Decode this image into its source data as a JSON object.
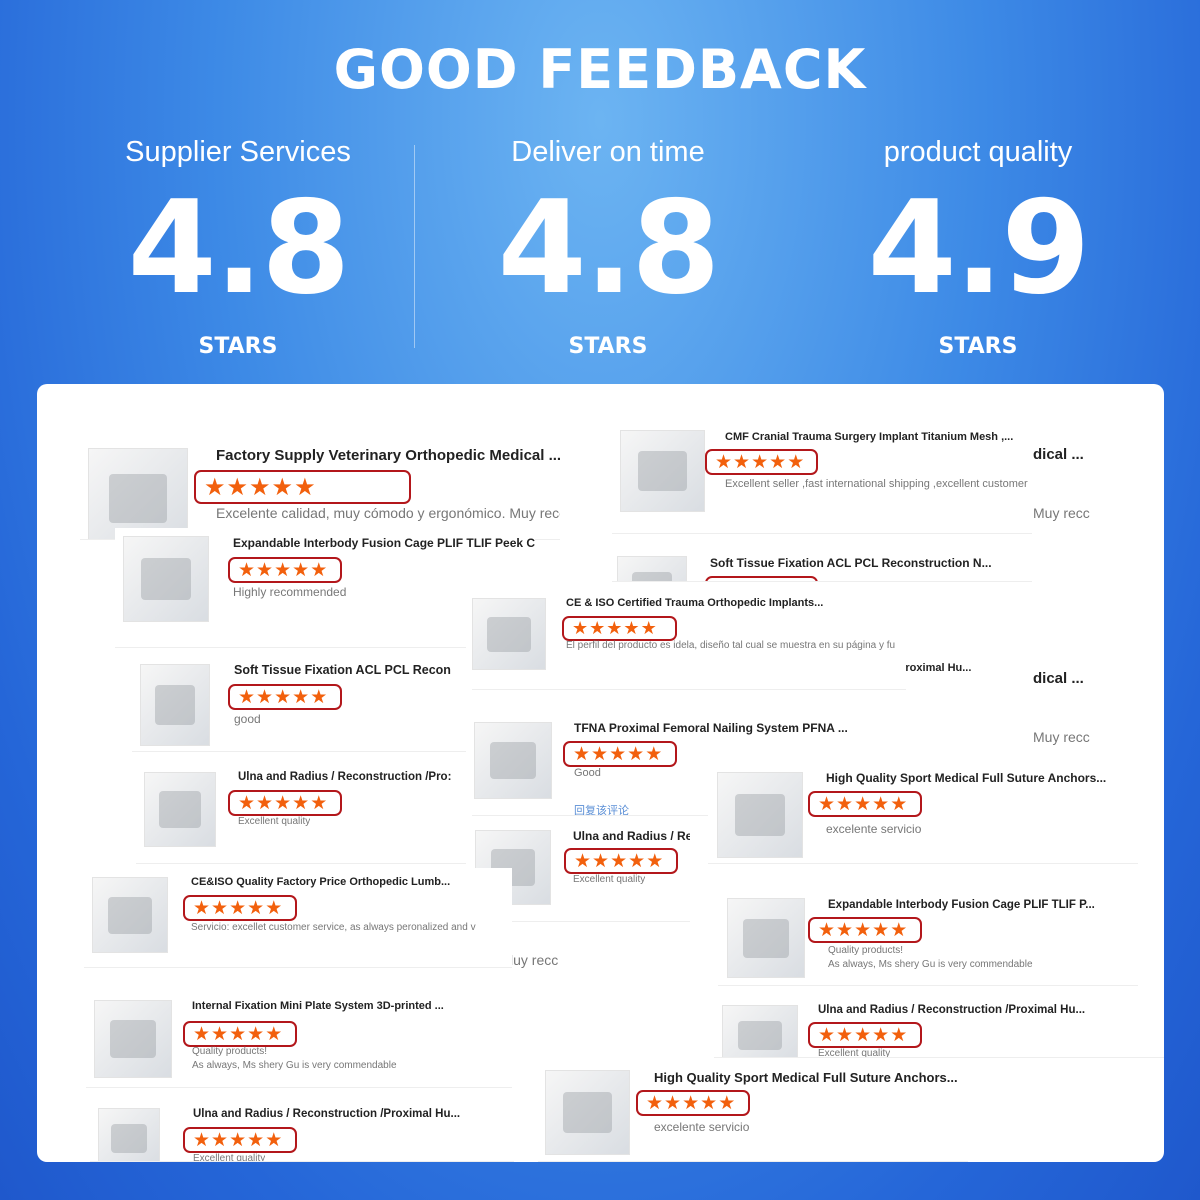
{
  "header": {
    "title": "GOOD FEEDBACK"
  },
  "stats": [
    {
      "label": "Supplier Services",
      "value": "4.8",
      "unit": "STARS"
    },
    {
      "label": "Deliver on time",
      "value": "4.8",
      "unit": "STARS"
    },
    {
      "label": "product quality",
      "value": "4.9",
      "unit": "STARS"
    }
  ],
  "colors": {
    "star": "#f2600d",
    "rating_box": "#b3171b",
    "link": "#5b8fd6"
  },
  "reviews": [
    {
      "title": "Factory Supply Veterinary Orthopedic Medical ...",
      "stars": 5,
      "comment": "Excelente calidad, muy cómodo y ergonómico. Muy recc"
    },
    {
      "title": "CMF Cranial Trauma Surgery Implant Titanium Mesh ,...",
      "stars": 5,
      "comment": "Excellent seller ,fast international shipping ,excellent customer"
    },
    {
      "title": "Soft Tissue Fixation ACL PCL Reconstruction N...",
      "stars": 5,
      "comment": ""
    },
    {
      "title": "Expandable Interbody Fusion Cage PLIF TLIF Peek Ca...",
      "stars": 5,
      "comment": "Highly recommended"
    },
    {
      "title": "CE & ISO Certified Trauma Orthopedic Implants...",
      "stars": 5,
      "comment": "El perfil del producto es idela,  diseño tal cual se muestra en su página y fu"
    },
    {
      "title": "Soft Tissue Fixation ACL PCL Recon",
      "stars": 5,
      "comment": "good"
    },
    {
      "title": "TFNA Proximal Femoral Nailing System PFNA ...",
      "stars": 5,
      "comment": "Good",
      "link": "回复该评论"
    },
    {
      "title": "Ulna and Radius / Reconstruction /Pro:",
      "stars": 5,
      "comment": "Excellent quality"
    },
    {
      "title": "High Quality Sport Medical Full Suture Anchors...",
      "stars": 5,
      "comment": "excelente servicio"
    },
    {
      "title": "Ulna and Radius / Rec",
      "stars": 5,
      "comment": "Excellent quality"
    },
    {
      "title": "CE&ISO Quality Factory Price Orthopedic Lumb...",
      "stars": 5,
      "comment": "Servicio:   excellet customer service, as always peronalized and v"
    },
    {
      "title": "Expandable Interbody Fusion Cage PLIF TLIF P...",
      "stars": 5,
      "comment": "Quality products!",
      "comment2": "As always, Ms shery Gu is very commendable"
    },
    {
      "title": "Internal Fixation Mini Plate System 3D-printed ...",
      "stars": 5,
      "comment": "Quality products!",
      "comment2": "As always, Ms shery Gu is very commendable"
    },
    {
      "title": "Ulna and Radius / Reconstruction /Proximal Hu...",
      "stars": 5,
      "comment": "Excellent quality"
    },
    {
      "title": "High Quality Sport Medical Full Suture Anchors...",
      "stars": 5,
      "comment": "excelente servicio"
    },
    {
      "title": "Ulna and Radius / Reconstruction /Proximal Hu...",
      "stars": 5,
      "comment": "Excellent quality"
    }
  ],
  "fragments": [
    "dical ...",
    "Muy recc",
    "dical ...",
    "Muy recc",
    "/Proximal Hu...",
    "luy recc"
  ]
}
